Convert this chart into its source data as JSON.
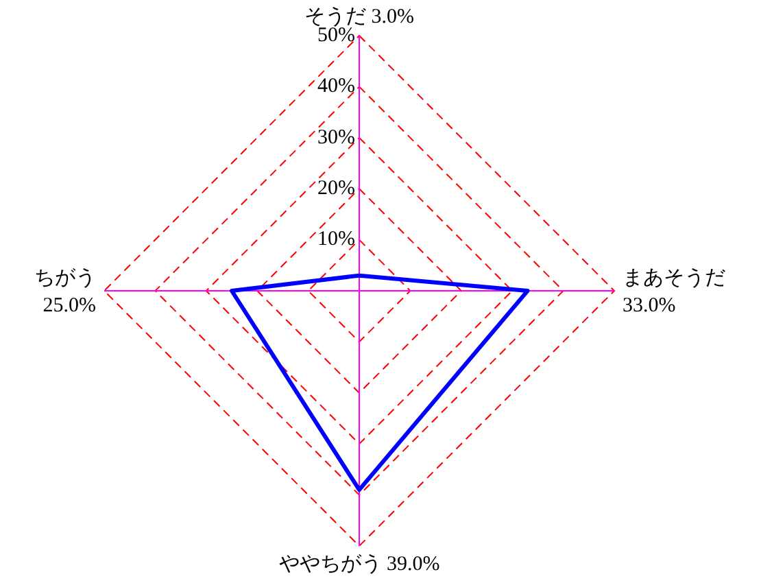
{
  "chart_data": {
    "type": "radar",
    "categories": [
      "そうだ 3.0%",
      "まあそうだ 33.0%",
      "ややちがう 39.0%",
      "ちがう 25.0%"
    ],
    "series": [
      {
        "color": "#0000ff",
        "values": [
          3.0,
          33.0,
          39.0,
          25.0
        ]
      }
    ],
    "ylim": [
      0,
      50
    ],
    "yticks": [
      {
        "value": 10,
        "label": "10%"
      },
      {
        "value": 20,
        "label": "20%"
      },
      {
        "value": 30,
        "label": "30%"
      },
      {
        "value": 40,
        "label": "40%"
      },
      {
        "value": 50,
        "label": "50%"
      }
    ],
    "grid": true,
    "legend": false,
    "marker": "none",
    "line_style": "solid"
  }
}
